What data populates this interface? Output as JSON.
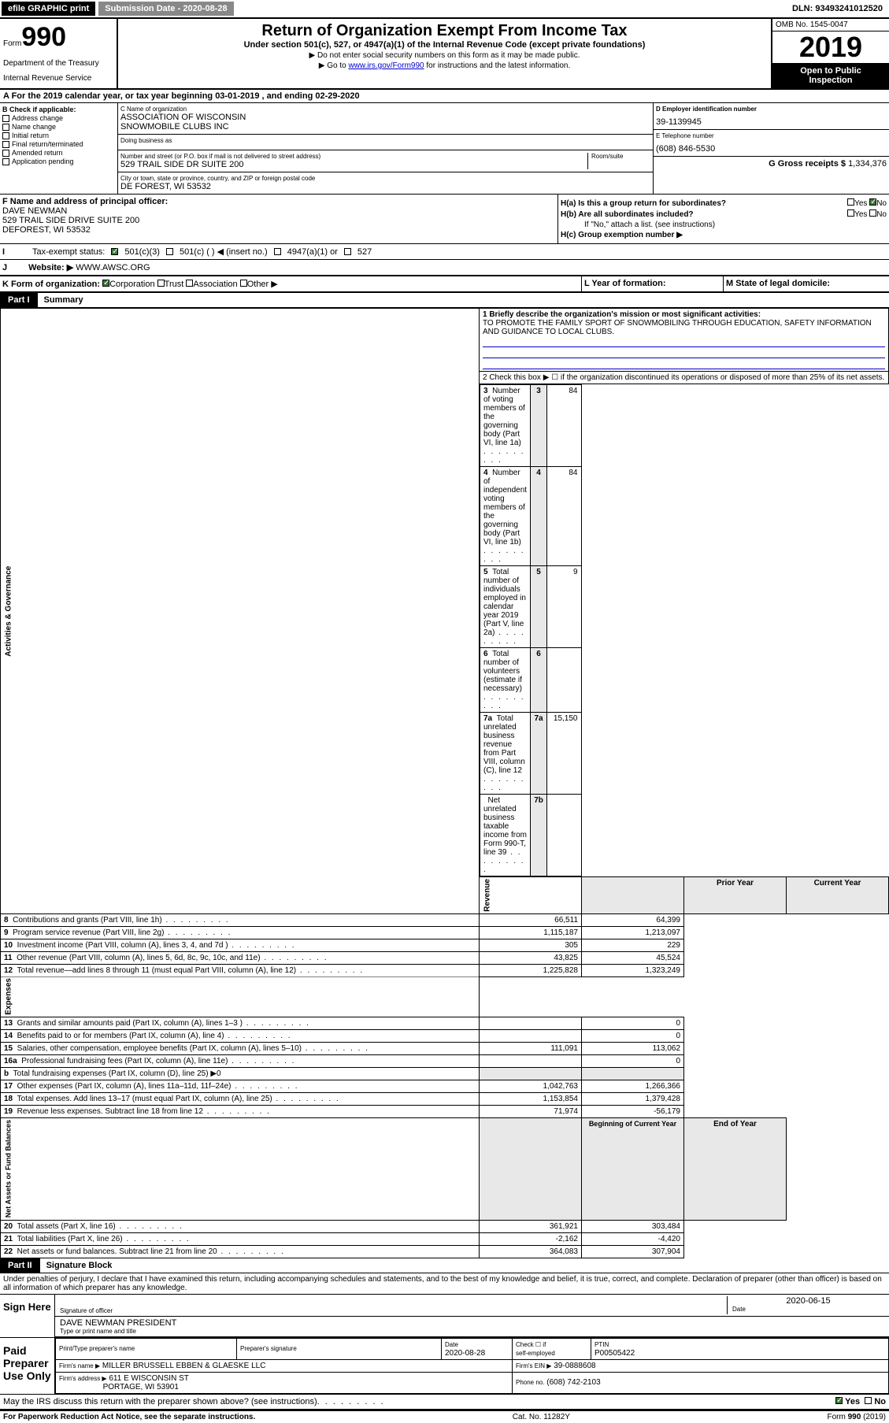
{
  "topbar": {
    "efile": "efile GRAPHIC print",
    "sub_label": "Submission Date - ",
    "sub_date": "2020-08-28",
    "dln": "DLN: 93493241012520"
  },
  "header": {
    "form_word": "Form",
    "form_num": "990",
    "dept1": "Department of the Treasury",
    "dept2": "Internal Revenue Service",
    "title": "Return of Organization Exempt From Income Tax",
    "subtitle": "Under section 501(c), 527, or 4947(a)(1) of the Internal Revenue Code (except private foundations)",
    "instr1": "▶ Do not enter social security numbers on this form as it may be made public.",
    "instr2_pre": "▶ Go to ",
    "instr2_link": "www.irs.gov/Form990",
    "instr2_post": " for instructions and the latest information.",
    "omb": "OMB No. 1545-0047",
    "year": "2019",
    "open1": "Open to Public",
    "open2": "Inspection"
  },
  "sectionA": "A   For the 2019 calendar year, or tax year beginning 03-01-2019   , and ending 02-29-2020",
  "checkboxes": {
    "label": "B Check if applicable:",
    "items": [
      "Address change",
      "Name change",
      "Initial return",
      "Final return/terminated",
      "Amended return",
      "Application pending"
    ]
  },
  "org": {
    "name_label": "C Name of organization",
    "name1": "ASSOCIATION OF WISCONSIN",
    "name2": "SNOWMOBILE CLUBS INC",
    "dba_label": "Doing business as",
    "addr_label": "Number and street (or P.O. box if mail is not delivered to street address)",
    "room_label": "Room/suite",
    "addr": "529 TRAIL SIDE DR SUITE 200",
    "city_label": "City or town, state or province, country, and ZIP or foreign postal code",
    "city": "DE FOREST, WI  53532"
  },
  "ein": {
    "label": "D Employer identification number",
    "value": "39-1139945"
  },
  "phone": {
    "label": "E Telephone number",
    "value": "(608) 846-5530"
  },
  "gross": {
    "label": "G Gross receipts $",
    "value": "1,334,376"
  },
  "officer": {
    "label": "F  Name and address of principal officer:",
    "name": "DAVE NEWMAN",
    "addr1": "529 TRAIL SIDE DRIVE SUITE 200",
    "addr2": "DEFOREST, WI  53532"
  },
  "h": {
    "a": "H(a)  Is this a group return for subordinates?",
    "b": "H(b)  Are all subordinates included?",
    "b_note": "If \"No,\" attach a list. (see instructions)",
    "c": "H(c)  Group exemption number ▶",
    "yes": "Yes",
    "no": "No"
  },
  "status": {
    "label": "Tax-exempt status:",
    "opt1": "501(c)(3)",
    "opt2": "501(c) (  ) ◀ (insert no.)",
    "opt3": "4947(a)(1) or",
    "opt4": "527"
  },
  "website": {
    "label": "Website: ▶",
    "value": "WWW.AWSC.ORG"
  },
  "k": "K Form of organization:",
  "k_opts": [
    "Corporation",
    "Trust",
    "Association",
    "Other ▶"
  ],
  "l": "L Year of formation:",
  "m": "M State of legal domicile:",
  "part1": {
    "tag": "Part I",
    "title": "Summary"
  },
  "summary": {
    "line1_label": "1  Briefly describe the organization's mission or most significant activities:",
    "mission": "TO PROMOTE THE FAMILY SPORT OF SNOWMOBILING THROUGH EDUCATION, SAFETY INFORMATION AND GUIDANCE TO LOCAL CLUBS.",
    "line2": "2  Check this box ▶ ☐  if the organization discontinued its operations or disposed of more than 25% of its net assets.",
    "rows": [
      {
        "n": "3",
        "label": "Number of voting members of the governing body (Part VI, line 1a)",
        "box": "3",
        "val": "84"
      },
      {
        "n": "4",
        "label": "Number of independent voting members of the governing body (Part VI, line 1b)",
        "box": "4",
        "val": "84"
      },
      {
        "n": "5",
        "label": "Total number of individuals employed in calendar year 2019 (Part V, line 2a)",
        "box": "5",
        "val": "9"
      },
      {
        "n": "6",
        "label": "Total number of volunteers (estimate if necessary)",
        "box": "6",
        "val": ""
      },
      {
        "n": "7a",
        "label": "Total unrelated business revenue from Part VIII, column (C), line 12",
        "box": "7a",
        "val": "15,150"
      },
      {
        "n": "",
        "label": "Net unrelated business taxable income from Form 990-T, line 39",
        "box": "7b",
        "val": ""
      }
    ],
    "col_hdr_prior": "Prior Year",
    "col_hdr_curr": "Current Year",
    "col_hdr_beg": "Beginning of Current Year",
    "col_hdr_end": "End of Year",
    "revenue": [
      {
        "n": "8",
        "label": "Contributions and grants (Part VIII, line 1h)",
        "p": "66,511",
        "c": "64,399"
      },
      {
        "n": "9",
        "label": "Program service revenue (Part VIII, line 2g)",
        "p": "1,115,187",
        "c": "1,213,097"
      },
      {
        "n": "10",
        "label": "Investment income (Part VIII, column (A), lines 3, 4, and 7d )",
        "p": "305",
        "c": "229"
      },
      {
        "n": "11",
        "label": "Other revenue (Part VIII, column (A), lines 5, 6d, 8c, 9c, 10c, and 11e)",
        "p": "43,825",
        "c": "45,524"
      },
      {
        "n": "12",
        "label": "Total revenue—add lines 8 through 11 (must equal Part VIII, column (A), line 12)",
        "p": "1,225,828",
        "c": "1,323,249"
      }
    ],
    "expenses": [
      {
        "n": "13",
        "label": "Grants and similar amounts paid (Part IX, column (A), lines 1–3 )",
        "p": "",
        "c": "0"
      },
      {
        "n": "14",
        "label": "Benefits paid to or for members (Part IX, column (A), line 4)",
        "p": "",
        "c": "0"
      },
      {
        "n": "15",
        "label": "Salaries, other compensation, employee benefits (Part IX, column (A), lines 5–10)",
        "p": "111,091",
        "c": "113,062"
      },
      {
        "n": "16a",
        "label": "Professional fundraising fees (Part IX, column (A), line 11e)",
        "p": "",
        "c": "0"
      },
      {
        "n": "b",
        "label": "Total fundraising expenses (Part IX, column (D), line 25) ▶0",
        "p": "—shade—",
        "c": "—shade—"
      },
      {
        "n": "17",
        "label": "Other expenses (Part IX, column (A), lines 11a–11d, 11f–24e)",
        "p": "1,042,763",
        "c": "1,266,366"
      },
      {
        "n": "18",
        "label": "Total expenses. Add lines 13–17 (must equal Part IX, column (A), line 25)",
        "p": "1,153,854",
        "c": "1,379,428"
      },
      {
        "n": "19",
        "label": "Revenue less expenses. Subtract line 18 from line 12",
        "p": "71,974",
        "c": "-56,179"
      }
    ],
    "net": [
      {
        "n": "20",
        "label": "Total assets (Part X, line 16)",
        "p": "361,921",
        "c": "303,484"
      },
      {
        "n": "21",
        "label": "Total liabilities (Part X, line 26)",
        "p": "-2,162",
        "c": "-4,420"
      },
      {
        "n": "22",
        "label": "Net assets or fund balances. Subtract line 21 from line 20",
        "p": "364,083",
        "c": "307,904"
      }
    ],
    "side_labels": {
      "gov": "Activities & Governance",
      "rev": "Revenue",
      "exp": "Expenses",
      "net": "Net Assets or Fund Balances"
    }
  },
  "part2": {
    "tag": "Part II",
    "title": "Signature Block"
  },
  "perjury": "Under penalties of perjury, I declare that I have examined this return, including accompanying schedules and statements, and to the best of my knowledge and belief, it is true, correct, and complete. Declaration of preparer (other than officer) is based on all information of which preparer has any knowledge.",
  "sign": {
    "here": "Sign Here",
    "sig_label": "Signature of officer",
    "date": "2020-06-15",
    "date_label": "Date",
    "name": "DAVE NEWMAN PRESIDENT",
    "name_label": "Type or print name and title"
  },
  "prep": {
    "label": "Paid Preparer Use Only",
    "h1": "Print/Type preparer's name",
    "h2": "Preparer's signature",
    "h3": "Date",
    "h3_val": "2020-08-28",
    "h4a": "Check ☐ if",
    "h4b": "self-employed",
    "h5": "PTIN",
    "ptin": "P00505422",
    "firm_name_label": "Firm's name    ▶",
    "firm_name": "MILLER BRUSSELL EBBEN & GLAESKE LLC",
    "firm_ein_label": "Firm's EIN ▶",
    "firm_ein": "39-0888608",
    "firm_addr_label": "Firm's address ▶",
    "firm_addr1": "611 E WISCONSIN ST",
    "firm_addr2": "PORTAGE, WI  53901",
    "phone_label": "Phone no.",
    "phone": "(608) 742-2103"
  },
  "discuss": "May the IRS discuss this return with the preparer shown above? (see instructions)",
  "footer": {
    "left": "For Paperwork Reduction Act Notice, see the separate instructions.",
    "mid": "Cat. No. 11282Y",
    "right": "Form 990 (2019)"
  }
}
